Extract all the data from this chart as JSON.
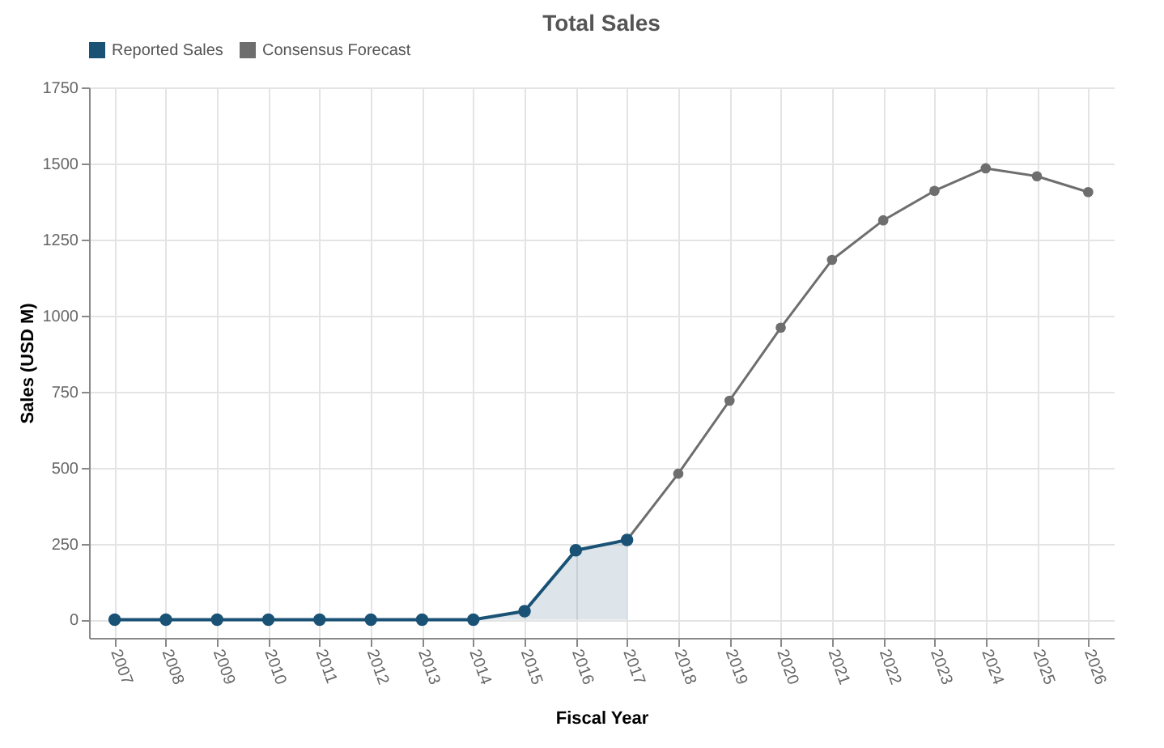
{
  "chart_data": {
    "type": "line",
    "title": "Total Sales",
    "xlabel": "Fiscal Year",
    "ylabel": "Sales (USD M)",
    "categories": [
      "2007",
      "2008",
      "2009",
      "2010",
      "2011",
      "2012",
      "2013",
      "2014",
      "2015",
      "2016",
      "2017",
      "2018",
      "2019",
      "2020",
      "2021",
      "2022",
      "2023",
      "2024",
      "2025",
      "2026"
    ],
    "series": [
      {
        "name": "Reported Sales",
        "type": "area",
        "color": "#1a5276",
        "values": [
          0,
          0,
          0,
          0,
          0,
          0,
          0,
          0,
          28,
          228,
          262,
          null,
          null,
          null,
          null,
          null,
          null,
          null,
          null,
          null
        ]
      },
      {
        "name": "Consensus Forecast",
        "type": "line",
        "color": "#6e6e6e",
        "values": [
          null,
          null,
          null,
          null,
          null,
          null,
          null,
          null,
          null,
          null,
          262,
          480,
          720,
          960,
          1183,
          1313,
          1410,
          1484,
          1458,
          1406
        ]
      }
    ],
    "ylim": [
      -60,
      1750
    ],
    "yticks": [
      0,
      250,
      500,
      750,
      1000,
      1250,
      1500,
      1750
    ],
    "grid": true,
    "legend": "top",
    "marker": "circle"
  }
}
